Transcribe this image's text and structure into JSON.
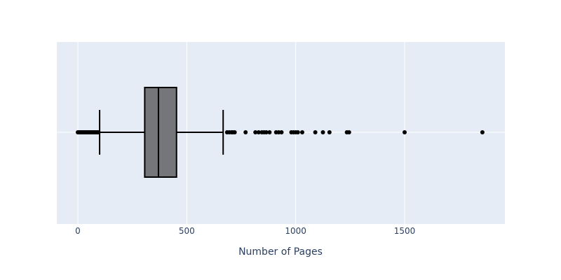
{
  "chart_data": {
    "type": "box",
    "orientation": "horizontal",
    "xlabel": "Number of Pages",
    "ylabel": "",
    "xlim": [
      -100,
      1950
    ],
    "xticks": [
      0,
      500,
      1000,
      1500
    ],
    "grid": true,
    "legend": "none",
    "box": {
      "lower_fence": 100,
      "q1": 307,
      "median": 370,
      "q3": 453,
      "upper_fence": 667
    },
    "outliers_low": [
      0,
      5,
      10,
      15,
      20,
      25,
      30,
      35,
      40,
      45,
      50,
      55,
      60,
      65,
      70,
      75,
      80,
      85,
      90,
      95
    ],
    "outliers_high": [
      685,
      695,
      705,
      712,
      720,
      770,
      815,
      830,
      845,
      855,
      865,
      880,
      910,
      922,
      935,
      980,
      990,
      1000,
      1010,
      1030,
      1090,
      1125,
      1155,
      1235,
      1245,
      1500,
      1857
    ],
    "colors": {
      "plot_bg": "#e5ecf6",
      "grid": "#ffffff",
      "box_fill": "#747679",
      "stroke": "#000000",
      "text": "#2a3f5f"
    }
  }
}
